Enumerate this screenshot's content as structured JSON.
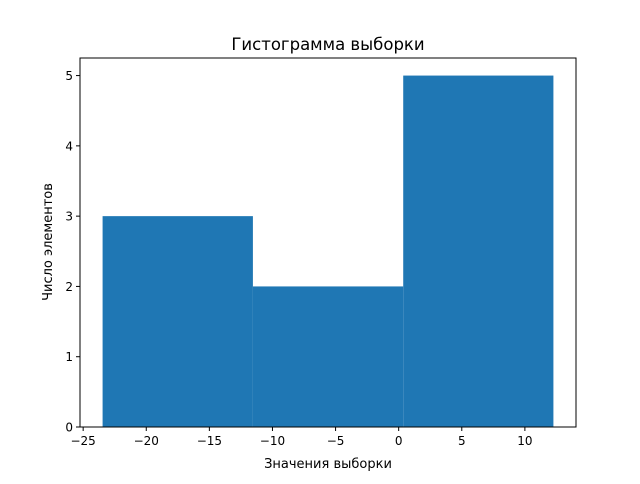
{
  "chart_data": {
    "type": "bar",
    "title": "Гистограмма выборки",
    "xlabel": "Значения выборки",
    "ylabel": "Число элементов",
    "bin_edges": [
      -23.46,
      -11.55,
      0.36,
      12.26
    ],
    "values": [
      3,
      2,
      5
    ],
    "xlim": [
      -25.25,
      14.05
    ],
    "ylim": [
      0,
      5.25
    ],
    "xticks": [
      -25,
      -20,
      -15,
      -10,
      -5,
      0,
      5,
      10
    ],
    "yticks": [
      0,
      1,
      2,
      3,
      4,
      5
    ],
    "grid": false,
    "bar_color": "#1f77b4"
  }
}
